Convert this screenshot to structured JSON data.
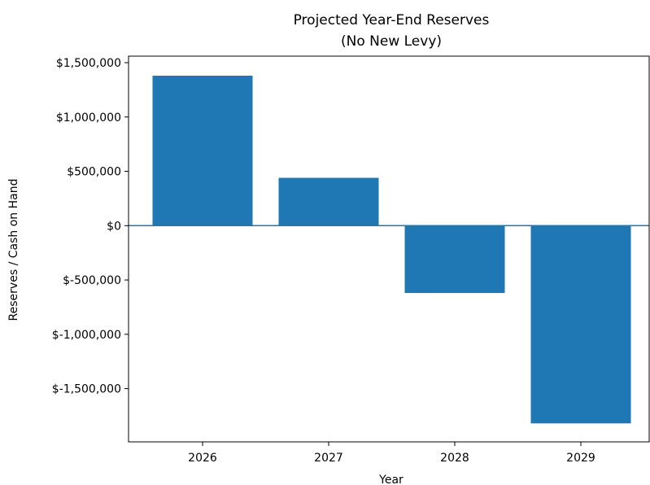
{
  "chart_data": {
    "type": "bar",
    "title": "Projected Year-End Reserves",
    "subtitle": "(No New Levy)",
    "xlabel": "Year",
    "ylabel": "Reserves / Cash on Hand",
    "categories": [
      "2026",
      "2027",
      "2028",
      "2029"
    ],
    "values": [
      1380000,
      440000,
      -620000,
      -1820000
    ],
    "ylim": [
      -1990000,
      1560000
    ],
    "yticks": [
      1500000,
      1000000,
      500000,
      0,
      -500000,
      -1000000,
      -1500000
    ],
    "ytick_labels": [
      "$1,500,000",
      "$1,000,000",
      "$500,000",
      "$0",
      "$-500,000",
      "$-1,000,000",
      "$-1,500,000"
    ],
    "bar_color": "#1f77b4",
    "zero_line": true,
    "zero_line_color": "#1f77b4",
    "grid": false,
    "legend": "none"
  }
}
